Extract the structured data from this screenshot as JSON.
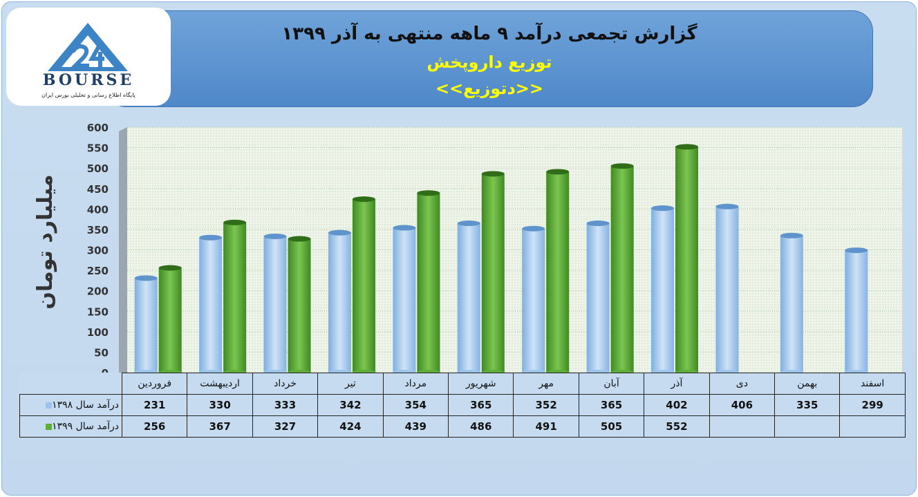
{
  "header": {
    "title": "گزارش تجمعی درآمد ۹ ماهه منتهی به آذر ۱۳۹۹",
    "subtitle": "توزیع داروپخش",
    "ticker": "<<دتوزیع>>"
  },
  "logo": {
    "wordmark": "BOURSE",
    "tagline": "پایگاه اطلاع رسانی و تحلیلی بورس ایران"
  },
  "colors": {
    "series_1398": "#9cc3ea",
    "series_1399": "#5fae3a",
    "banner": "#5b93d0",
    "plot_bg": "#eef4ea"
  },
  "chart_data": {
    "type": "bar",
    "ylabel": "میلیارد تومان",
    "ylim": [
      0,
      600
    ],
    "yticks": [
      "0",
      "50",
      "100",
      "150",
      "200",
      "250",
      "300",
      "350",
      "400",
      "450",
      "500",
      "550",
      "600"
    ],
    "grid": true,
    "categories": [
      "فروردین",
      "اردیبهشت",
      "خرداد",
      "تیر",
      "مرداد",
      "شهریور",
      "مهر",
      "آبان",
      "آذر",
      "دی",
      "بهمن",
      "اسفند"
    ],
    "series": [
      {
        "name": "درآمد سال ۱۳۹۸",
        "values": [
          231,
          330,
          333,
          342,
          354,
          365,
          352,
          365,
          402,
          406,
          335,
          299
        ]
      },
      {
        "name": "درآمد سال ۱۳۹۹",
        "values": [
          256,
          367,
          327,
          424,
          439,
          486,
          491,
          505,
          552,
          null,
          null,
          null
        ]
      }
    ]
  }
}
